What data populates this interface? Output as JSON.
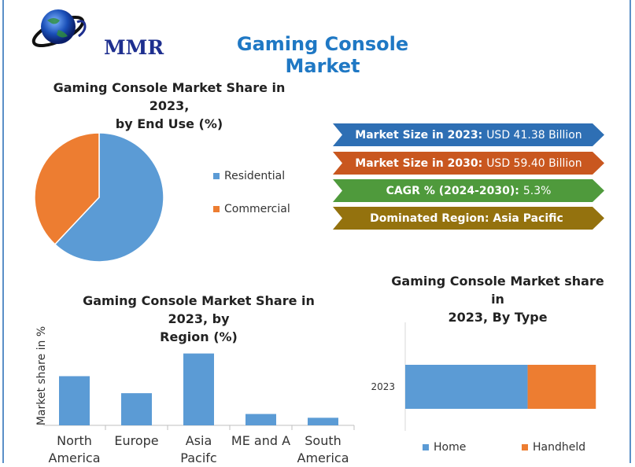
{
  "header": {
    "logo_text": "MMR",
    "title": "Gaming Console Market"
  },
  "colors": {
    "blue": "#5b9bd5",
    "orange": "#ed7d31",
    "title_blue": "#1f78c4"
  },
  "stats": [
    {
      "label": "Market Size in 2023:",
      "value": "USD 41.38 Billion",
      "color": "#2e6fb4"
    },
    {
      "label": "Market Size in 2030:",
      "value": "USD 59.40 Billion",
      "color": "#c9571f"
    },
    {
      "label": "CAGR % (2024-2030):",
      "value": "5.3%",
      "color": "#4f9a3c"
    },
    {
      "label": "Dominated Region: Asia Pacific",
      "value": "",
      "color": "#94720e"
    }
  ],
  "chart_data": [
    {
      "type": "pie",
      "title": "Gaming Console Market Share in 2023, by End Use (%)",
      "title_lines": [
        "Gaming Console Market Share in 2023,",
        "by End Use (%)"
      ],
      "categories": [
        "Residential",
        "Commercial"
      ],
      "values": [
        62,
        38
      ],
      "colors": [
        "#5b9bd5",
        "#ed7d31"
      ],
      "legend_position": "right"
    },
    {
      "type": "bar",
      "title": "Gaming Console Market Share in 2023, by Region (%)",
      "title_lines": [
        "Gaming Console Market Share in 2023, by",
        "Region (%)"
      ],
      "ylabel": "Market share in %",
      "categories": [
        "North\nAmerica",
        "Europe",
        "Asia\nPacifc",
        "ME and A",
        "South\nAmerica"
      ],
      "values": [
        26,
        17,
        38,
        6,
        4
      ],
      "ylim": [
        0,
        42
      ],
      "grid": false,
      "color": "#5b9bd5"
    },
    {
      "type": "bar",
      "orientation": "horizontal",
      "stacked": true,
      "title": "Gaming Console Market share in 2023, By Type",
      "title_lines": [
        "Gaming Console Market share in",
        "2023, By Type"
      ],
      "categories": [
        "2023"
      ],
      "series": [
        {
          "name": "Home",
          "values": [
            61
          ],
          "color": "#5b9bd5"
        },
        {
          "name": "Handheld",
          "values": [
            34
          ],
          "color": "#ed7d31"
        }
      ],
      "xlim": [
        0,
        100
      ],
      "legend_position": "bottom"
    }
  ]
}
